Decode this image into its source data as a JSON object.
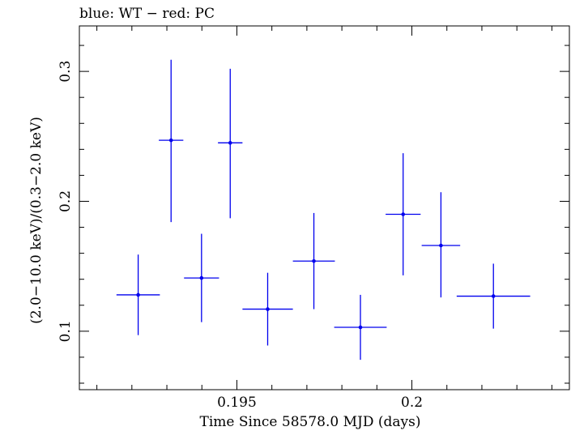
{
  "chart_data": {
    "type": "scatter",
    "title": "blue: WT − red: PC",
    "xlabel": "Time Since 58578.0 MJD (days)",
    "ylabel": "(2.0−10.0 keV)/(0.3−2.0 keV)",
    "xlim": [
      0.1905,
      0.2045
    ],
    "ylim": [
      0.055,
      0.335
    ],
    "x_ticks": [
      {
        "value": 0.195,
        "label": "0.195"
      },
      {
        "value": 0.2,
        "label": "0.2"
      }
    ],
    "y_ticks": [
      {
        "value": 0.1,
        "label": "0.1"
      },
      {
        "value": 0.2,
        "label": "0.2"
      },
      {
        "value": 0.3,
        "label": "0.3"
      }
    ],
    "grid": false,
    "series": [
      {
        "name": "WT",
        "color": "#0000ee",
        "points": [
          {
            "x": 0.19218,
            "xerr": 0.00062,
            "y": 0.128,
            "ylo": 0.097,
            "yhi": 0.159
          },
          {
            "x": 0.19312,
            "xerr": 0.00035,
            "y": 0.247,
            "ylo": 0.184,
            "yhi": 0.309
          },
          {
            "x": 0.19399,
            "xerr": 0.0005,
            "y": 0.141,
            "ylo": 0.107,
            "yhi": 0.175
          },
          {
            "x": 0.19481,
            "xerr": 0.00035,
            "y": 0.245,
            "ylo": 0.187,
            "yhi": 0.302
          },
          {
            "x": 0.19588,
            "xerr": 0.00072,
            "y": 0.117,
            "ylo": 0.089,
            "yhi": 0.145
          },
          {
            "x": 0.1972,
            "xerr": 0.0006,
            "y": 0.154,
            "ylo": 0.117,
            "yhi": 0.191
          },
          {
            "x": 0.19853,
            "xerr": 0.00075,
            "y": 0.103,
            "ylo": 0.078,
            "yhi": 0.128
          },
          {
            "x": 0.19975,
            "xerr": 0.0005,
            "y": 0.19,
            "ylo": 0.143,
            "yhi": 0.237
          },
          {
            "x": 0.20083,
            "xerr": 0.00055,
            "y": 0.166,
            "ylo": 0.126,
            "yhi": 0.207
          },
          {
            "x": 0.20233,
            "xerr": 0.00105,
            "y": 0.127,
            "ylo": 0.102,
            "yhi": 0.152
          }
        ]
      }
    ]
  }
}
